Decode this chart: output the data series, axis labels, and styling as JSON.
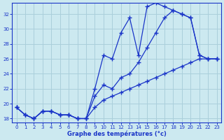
{
  "xlabel": "Graphe des températures (°c)",
  "bg_color": "#cce9f0",
  "grid_color": "#aacfdb",
  "line_color": "#1a35c8",
  "hours": [
    0,
    1,
    2,
    3,
    4,
    5,
    6,
    7,
    8,
    9,
    10,
    11,
    12,
    13,
    14,
    15,
    16,
    17,
    18,
    19,
    20,
    21,
    22,
    23
  ],
  "line1": [
    19.5,
    18.5,
    18.0,
    19.0,
    19.0,
    18.5,
    18.5,
    18.0,
    18.0,
    22.0,
    26.5,
    26.0,
    29.5,
    31.5,
    26.5,
    33.0,
    33.5,
    33.0,
    32.5,
    32.0,
    31.5,
    26.5,
    26.0,
    26.0
  ],
  "line2": [
    19.5,
    18.5,
    18.0,
    19.0,
    19.0,
    18.5,
    18.5,
    18.0,
    18.0,
    21.0,
    22.5,
    22.0,
    23.5,
    24.0,
    25.5,
    27.5,
    29.5,
    31.5,
    32.5,
    32.0,
    31.5,
    26.5,
    26.0,
    26.0
  ],
  "line3": [
    19.5,
    18.5,
    18.0,
    19.0,
    19.0,
    18.5,
    18.5,
    18.0,
    18.0,
    19.5,
    20.5,
    21.0,
    21.5,
    22.0,
    22.5,
    23.0,
    23.5,
    24.0,
    24.5,
    25.0,
    25.5,
    26.0,
    26.0,
    26.0
  ],
  "ylim": [
    17.5,
    33.5
  ],
  "yticks": [
    18,
    20,
    22,
    24,
    26,
    28,
    30,
    32
  ],
  "xlim": [
    -0.5,
    23.5
  ],
  "xticks": [
    0,
    1,
    2,
    3,
    4,
    5,
    6,
    7,
    8,
    9,
    10,
    11,
    12,
    13,
    14,
    15,
    16,
    17,
    18,
    19,
    20,
    21,
    22,
    23
  ]
}
